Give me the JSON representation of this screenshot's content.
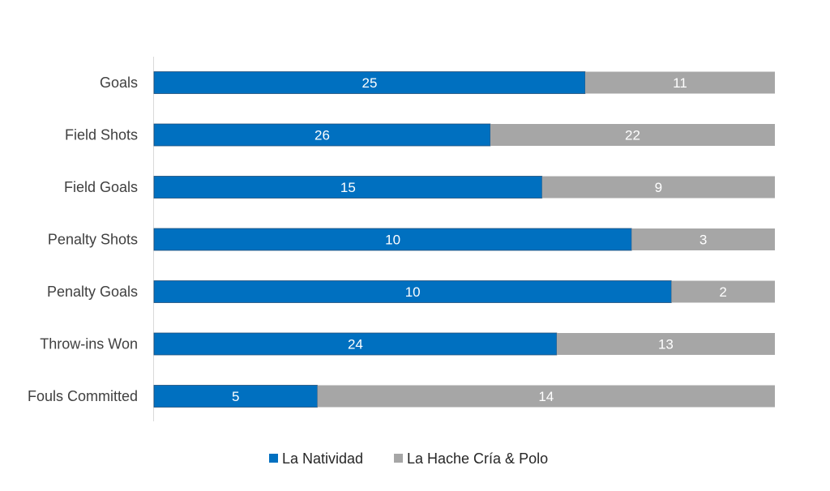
{
  "chart_data": {
    "type": "bar",
    "orientation": "horizontal",
    "stacking": "percent",
    "categories": [
      "Goals",
      "Field Shots",
      "Field Goals",
      "Penalty Shots",
      "Penalty Goals",
      "Throw-ins Won",
      "Fouls Committed"
    ],
    "series": [
      {
        "name": "La Natividad",
        "values": [
          25,
          26,
          15,
          10,
          10,
          24,
          5
        ],
        "color": "#0070C0"
      },
      {
        "name": "La Hache Cría & Polo",
        "values": [
          11,
          22,
          9,
          3,
          2,
          13,
          14
        ],
        "color": "#A6A6A6"
      }
    ],
    "title": "",
    "xlabel": "",
    "ylabel": "",
    "grid": false,
    "legend_position": "bottom"
  }
}
